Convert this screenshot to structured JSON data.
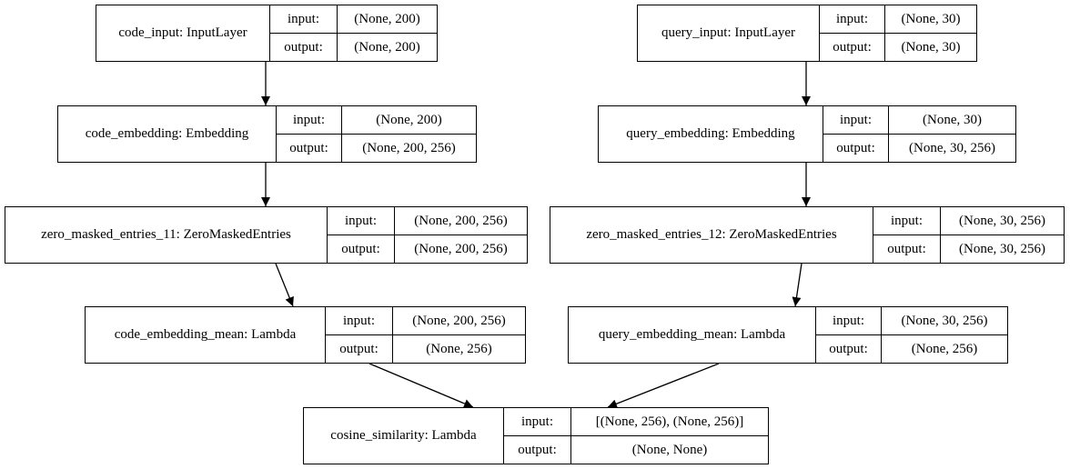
{
  "labels": {
    "input": "input:",
    "output": "output:"
  },
  "nodes": [
    {
      "id": "code_input",
      "name": "code_input: InputLayer",
      "input": "(None, 200)",
      "output": "(None, 200)"
    },
    {
      "id": "query_input",
      "name": "query_input: InputLayer",
      "input": "(None, 30)",
      "output": "(None, 30)"
    },
    {
      "id": "code_embedding",
      "name": "code_embedding: Embedding",
      "input": "(None, 200)",
      "output": "(None, 200, 256)"
    },
    {
      "id": "query_embedding",
      "name": "query_embedding: Embedding",
      "input": "(None, 30)",
      "output": "(None, 30, 256)"
    },
    {
      "id": "zme11",
      "name": "zero_masked_entries_11: ZeroMaskedEntries",
      "input": "(None, 200, 256)",
      "output": "(None, 200, 256)"
    },
    {
      "id": "zme12",
      "name": "zero_masked_entries_12: ZeroMaskedEntries",
      "input": "(None, 30, 256)",
      "output": "(None, 30, 256)"
    },
    {
      "id": "code_mean",
      "name": "code_embedding_mean: Lambda",
      "input": "(None, 200, 256)",
      "output": "(None, 256)"
    },
    {
      "id": "query_mean",
      "name": "query_embedding_mean: Lambda",
      "input": "(None, 30, 256)",
      "output": "(None, 256)"
    },
    {
      "id": "cosine",
      "name": "cosine_similarity: Lambda",
      "input": "[(None, 256), (None, 256)]",
      "output": "(None, None)"
    }
  ],
  "edges": [
    [
      "code_input",
      "code_embedding"
    ],
    [
      "query_input",
      "query_embedding"
    ],
    [
      "code_embedding",
      "zme11"
    ],
    [
      "query_embedding",
      "zme12"
    ],
    [
      "zme11",
      "code_mean"
    ],
    [
      "zme12",
      "query_mean"
    ],
    [
      "code_mean",
      "cosine"
    ],
    [
      "query_mean",
      "cosine"
    ]
  ]
}
